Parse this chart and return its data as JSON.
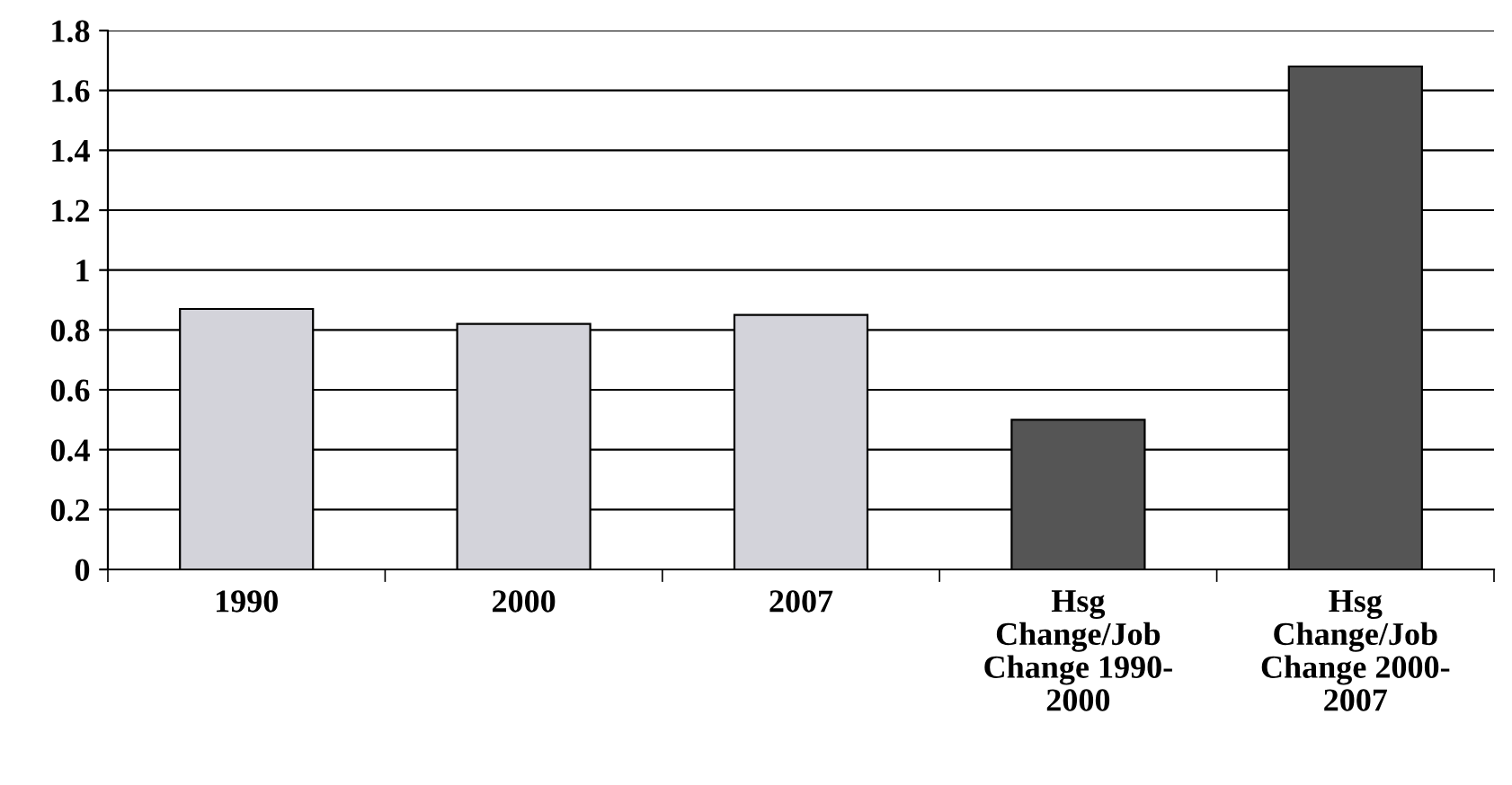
{
  "chart_data": {
    "type": "bar",
    "categories": [
      "1990",
      "2000",
      "2007",
      "Hsg\nChange/Job\nChange 1990-\n2000",
      "Hsg\nChange/Job\nChange 2000-\n2007"
    ],
    "values": [
      0.87,
      0.82,
      0.85,
      0.5,
      1.68
    ],
    "colors": [
      "#d3d3da",
      "#d3d3da",
      "#d3d3da",
      "#555555",
      "#555555"
    ],
    "ylim": [
      0,
      1.8
    ],
    "yticks": [
      0,
      0.2,
      0.4,
      0.6,
      0.8,
      1,
      1.2,
      1.4,
      1.6,
      1.8
    ],
    "grid": "y"
  }
}
